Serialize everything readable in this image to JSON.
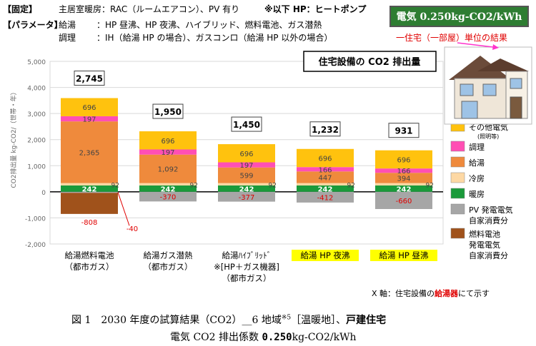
{
  "header": {
    "fixed_tag": "【固定】",
    "fixed_text": "主居室暖房：RAC（ルームエアコン）、PV 有り",
    "note": "※以下 HP：ヒートポンプ",
    "param_tag": "【パラメータ】",
    "param_rows": [
      {
        "label": "給湯",
        "value": "：HP 昼沸、HP 夜沸、ハイブリッド、燃料電池、ガス潜熱"
      },
      {
        "label": "調理",
        "value": "：IH（給湯 HP の場合）、ガスコンロ（給湯 HP 以外の場合）"
      }
    ]
  },
  "badge": "電気 0.250kg-CO2/kWh",
  "result_note": "一住宅（一部屋）単位の結果",
  "footnote_x": {
    "prefix": "X 軸：住宅設備の",
    "highlight": "給湯器",
    "suffix": "にて示す"
  },
  "caption": {
    "line1_a": "図 1　2030 年度の試算結果（CO2）__6 地域",
    "line1_sup": "※5",
    "line1_b": "［温暖地］、",
    "line1_bold": "戸建住宅",
    "line2_a": "電気 CO2 排出係数",
    "line2_bold": "0.250",
    "line2_b": "kg-CO2/kWh"
  },
  "chart_data": {
    "type": "bar",
    "stacked": true,
    "title": "住宅設備の CO2 排出量",
    "ylabel": "CO2排出量 kg-CO2/（世帯・年）",
    "ylim": [
      -2000,
      5000
    ],
    "yticks": [
      -2000,
      -1000,
      0,
      1000,
      2000,
      3000,
      4000,
      5000
    ],
    "ytick_labels": [
      "-2,000",
      "-1,000",
      "0",
      "1,000",
      "2,000",
      "3,000",
      "4,000",
      "5,000"
    ],
    "grid": true,
    "legend_position": "right",
    "categories": [
      {
        "lines": [
          "給湯燃料電池",
          "（都市ガス）"
        ],
        "highlight": false
      },
      {
        "lines": [
          "給湯ガス潜熱",
          "（都市ガス）"
        ],
        "highlight": false
      },
      {
        "lines": [
          "給湯ﾊｲﾌﾞﾘｯﾄﾞ",
          "※[HP＋ガス機器]",
          "（都市ガス）"
        ],
        "highlight": false
      },
      {
        "lines": [
          "給湯 HP 夜沸"
        ],
        "highlight": true
      },
      {
        "lines": [
          "給湯 HP 昼沸"
        ],
        "highlight": true
      }
    ],
    "series": [
      {
        "name": "暖房",
        "color": "#1a9a3a",
        "values": [
          242,
          242,
          242,
          242,
          242
        ],
        "labels": [
          "242",
          "242",
          "242",
          "242",
          "242"
        ]
      },
      {
        "name": "冷房",
        "color": "#fdd8a4",
        "values": [
          92,
          92,
          92,
          92,
          92
        ],
        "labels": [
          "92",
          "92",
          "92",
          "92",
          "92"
        ]
      },
      {
        "name": "給湯",
        "color": "#ef8a3c",
        "values": [
          2365,
          1092,
          599,
          447,
          394
        ],
        "labels": [
          "2,365",
          "1,092",
          "599",
          "447",
          "394"
        ]
      },
      {
        "name": "調理",
        "color": "#ff4fb4",
        "values": [
          197,
          197,
          197,
          166,
          166
        ],
        "labels": [
          "197",
          "197",
          "197",
          "166",
          "166"
        ]
      },
      {
        "name": "その他電気",
        "name_sub": "(照明等)",
        "color": "#ffc20e",
        "values": [
          696,
          696,
          696,
          696,
          696
        ],
        "labels": [
          "696",
          "696",
          "696",
          "696",
          "696"
        ]
      },
      {
        "name": "PV 発電電気自家消費分",
        "name_lines": [
          "PV 発電電気",
          "自家消費分"
        ],
        "color": "#a6a6a6",
        "values": [
          -40,
          -370,
          -377,
          -412,
          -660
        ],
        "labels": [
          "-40",
          "-370",
          "-377",
          "-412",
          "-660"
        ]
      },
      {
        "name": "燃料電池発電電気自家消費分",
        "name_lines": [
          "燃料電池",
          "発電電気",
          "自家消費分"
        ],
        "color": "#a0521b",
        "values": [
          -808,
          0,
          0,
          0,
          0
        ],
        "labels": [
          "-808",
          "",
          "",
          "",
          ""
        ]
      }
    ],
    "totals": [
      "2,745",
      "1,950",
      "1,450",
      "1,232",
      "931"
    ]
  }
}
